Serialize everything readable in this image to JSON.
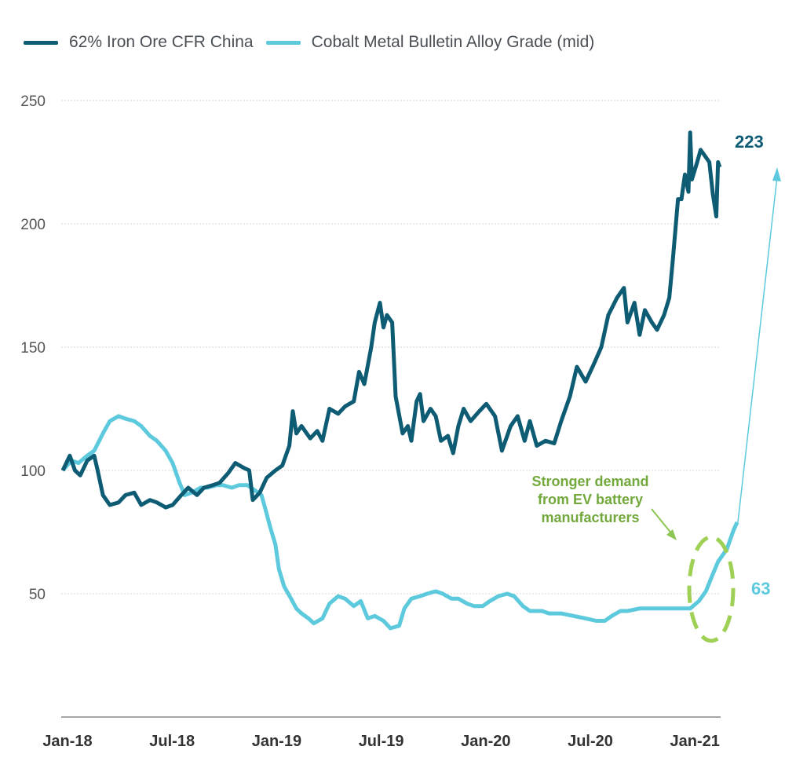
{
  "chart_data": {
    "type": "line",
    "title": "",
    "xlabel": "",
    "ylabel": "",
    "x_unit": "months since Jan-18",
    "xlim": [
      0,
      37.7
    ],
    "ylim": [
      0,
      250
    ],
    "yticks": [
      50,
      100,
      150,
      200,
      250
    ],
    "xticks": [
      {
        "x": 0,
        "label": "Jan-18"
      },
      {
        "x": 6,
        "label": "Jul-18"
      },
      {
        "x": 12,
        "label": "Jan-19"
      },
      {
        "x": 18,
        "label": "Jul-19"
      },
      {
        "x": 24,
        "label": "Jan-20"
      },
      {
        "x": 30,
        "label": "Jul-20"
      },
      {
        "x": 36,
        "label": "Jan-21"
      }
    ],
    "grid": true,
    "legend_position": "top-left",
    "series": [
      {
        "name": "62% Iron Ore CFR China",
        "color": "#0e5b74",
        "end_label": "223",
        "points": [
          [
            0,
            100
          ],
          [
            0.4,
            106
          ],
          [
            0.7,
            100
          ],
          [
            1.0,
            98
          ],
          [
            1.4,
            104
          ],
          [
            1.8,
            106
          ],
          [
            2.0,
            100
          ],
          [
            2.3,
            90
          ],
          [
            2.7,
            86
          ],
          [
            3.2,
            87
          ],
          [
            3.6,
            90
          ],
          [
            4.1,
            91
          ],
          [
            4.5,
            86
          ],
          [
            5.0,
            88
          ],
          [
            5.4,
            87
          ],
          [
            5.9,
            85
          ],
          [
            6.3,
            86
          ],
          [
            6.8,
            90
          ],
          [
            7.2,
            93
          ],
          [
            7.7,
            90
          ],
          [
            8.1,
            93
          ],
          [
            8.6,
            94
          ],
          [
            9.0,
            95
          ],
          [
            9.5,
            99
          ],
          [
            9.9,
            103
          ],
          [
            10.4,
            101
          ],
          [
            10.7,
            100
          ],
          [
            10.9,
            88
          ],
          [
            11.3,
            91
          ],
          [
            11.7,
            97
          ],
          [
            12.2,
            100
          ],
          [
            12.6,
            102
          ],
          [
            13.0,
            110
          ],
          [
            13.2,
            124
          ],
          [
            13.4,
            115
          ],
          [
            13.7,
            118
          ],
          [
            14.2,
            113
          ],
          [
            14.6,
            116
          ],
          [
            14.9,
            112
          ],
          [
            15.3,
            125
          ],
          [
            15.8,
            123
          ],
          [
            16.2,
            126
          ],
          [
            16.7,
            128
          ],
          [
            17.0,
            140
          ],
          [
            17.3,
            135
          ],
          [
            17.7,
            150
          ],
          [
            17.9,
            160
          ],
          [
            18.2,
            168
          ],
          [
            18.4,
            158
          ],
          [
            18.6,
            163
          ],
          [
            18.9,
            160
          ],
          [
            19.1,
            130
          ],
          [
            19.5,
            115
          ],
          [
            19.8,
            118
          ],
          [
            20.0,
            112
          ],
          [
            20.3,
            128
          ],
          [
            20.5,
            131
          ],
          [
            20.7,
            120
          ],
          [
            21.1,
            125
          ],
          [
            21.4,
            122
          ],
          [
            21.7,
            112
          ],
          [
            22.1,
            114
          ],
          [
            22.4,
            107
          ],
          [
            22.7,
            118
          ],
          [
            23.0,
            125
          ],
          [
            23.4,
            120
          ],
          [
            23.9,
            124
          ],
          [
            24.3,
            127
          ],
          [
            24.8,
            122
          ],
          [
            25.2,
            108
          ],
          [
            25.7,
            118
          ],
          [
            26.1,
            122
          ],
          [
            26.5,
            112
          ],
          [
            26.8,
            120
          ],
          [
            27.2,
            110
          ],
          [
            27.7,
            112
          ],
          [
            28.2,
            111
          ],
          [
            28.6,
            120
          ],
          [
            29.1,
            130
          ],
          [
            29.5,
            142
          ],
          [
            30.0,
            136
          ],
          [
            30.4,
            142
          ],
          [
            30.9,
            150
          ],
          [
            31.3,
            163
          ],
          [
            31.8,
            170
          ],
          [
            32.2,
            174
          ],
          [
            32.4,
            160
          ],
          [
            32.8,
            168
          ],
          [
            33.1,
            155
          ],
          [
            33.4,
            165
          ],
          [
            33.8,
            160
          ],
          [
            34.1,
            157
          ],
          [
            34.5,
            163
          ],
          [
            34.8,
            170
          ],
          [
            35.0,
            185
          ],
          [
            35.3,
            210
          ],
          [
            35.5,
            210
          ],
          [
            35.7,
            220
          ],
          [
            35.9,
            213
          ],
          [
            36.0,
            237
          ],
          [
            36.1,
            218
          ],
          [
            36.4,
            225
          ],
          [
            36.6,
            230
          ],
          [
            36.8,
            228
          ],
          [
            37.1,
            225
          ],
          [
            37.3,
            212
          ],
          [
            37.5,
            203
          ],
          [
            37.6,
            225
          ],
          [
            37.7,
            223
          ]
        ]
      },
      {
        "name": "Cobalt Metal Bulletin Alloy Grade (mid)",
        "color": "#5cc9dd",
        "end_label": "63",
        "points": [
          [
            0,
            100
          ],
          [
            0.5,
            104
          ],
          [
            0.9,
            103
          ],
          [
            1.4,
            106
          ],
          [
            1.8,
            108
          ],
          [
            2.3,
            115
          ],
          [
            2.7,
            120
          ],
          [
            3.2,
            122
          ],
          [
            3.6,
            121
          ],
          [
            4.1,
            120
          ],
          [
            4.5,
            118
          ],
          [
            5.0,
            114
          ],
          [
            5.4,
            112
          ],
          [
            5.9,
            108
          ],
          [
            6.3,
            103
          ],
          [
            6.7,
            95
          ],
          [
            7.0,
            90
          ],
          [
            7.4,
            91
          ],
          [
            7.9,
            93
          ],
          [
            8.3,
            93
          ],
          [
            8.8,
            94
          ],
          [
            9.2,
            94
          ],
          [
            9.7,
            93
          ],
          [
            10.1,
            94
          ],
          [
            10.6,
            94
          ],
          [
            11.0,
            92
          ],
          [
            11.4,
            90
          ],
          [
            11.6,
            85
          ],
          [
            11.9,
            77
          ],
          [
            12.2,
            70
          ],
          [
            12.4,
            60
          ],
          [
            12.7,
            53
          ],
          [
            13.1,
            48
          ],
          [
            13.4,
            44
          ],
          [
            13.7,
            42
          ],
          [
            14.1,
            40
          ],
          [
            14.4,
            38
          ],
          [
            14.9,
            40
          ],
          [
            15.3,
            46
          ],
          [
            15.8,
            49
          ],
          [
            16.2,
            48
          ],
          [
            16.7,
            45
          ],
          [
            17.1,
            47
          ],
          [
            17.5,
            40
          ],
          [
            17.9,
            41
          ],
          [
            18.4,
            39
          ],
          [
            18.8,
            36
          ],
          [
            19.3,
            37
          ],
          [
            19.6,
            44
          ],
          [
            20.0,
            48
          ],
          [
            20.5,
            49
          ],
          [
            20.9,
            50
          ],
          [
            21.4,
            51
          ],
          [
            21.8,
            50
          ],
          [
            22.3,
            48
          ],
          [
            22.7,
            48
          ],
          [
            23.2,
            46
          ],
          [
            23.6,
            45
          ],
          [
            24.1,
            45
          ],
          [
            24.5,
            47
          ],
          [
            25.0,
            49
          ],
          [
            25.5,
            50
          ],
          [
            25.9,
            49
          ],
          [
            26.4,
            45
          ],
          [
            26.8,
            43
          ],
          [
            27.5,
            43
          ],
          [
            27.9,
            42
          ],
          [
            28.6,
            42
          ],
          [
            29.3,
            41
          ],
          [
            30.0,
            40
          ],
          [
            30.6,
            39
          ],
          [
            31.1,
            39
          ],
          [
            31.5,
            41
          ],
          [
            32.0,
            43
          ],
          [
            32.4,
            43
          ],
          [
            33.1,
            44
          ],
          [
            33.8,
            44
          ],
          [
            34.5,
            44
          ],
          [
            35.1,
            44
          ],
          [
            36.0,
            44
          ],
          [
            36.5,
            47
          ],
          [
            36.9,
            51
          ],
          [
            37.3,
            58
          ],
          [
            37.6,
            63
          ],
          [
            38.1,
            68
          ],
          [
            38.5,
            76
          ],
          [
            38.7,
            79
          ]
        ]
      }
    ],
    "annotations": [
      {
        "text_lines": [
          "Stronger demand",
          "from EV battery",
          "manufacturers"
        ],
        "color": "#72a83c",
        "highlight_color": "#9fd056"
      }
    ]
  }
}
